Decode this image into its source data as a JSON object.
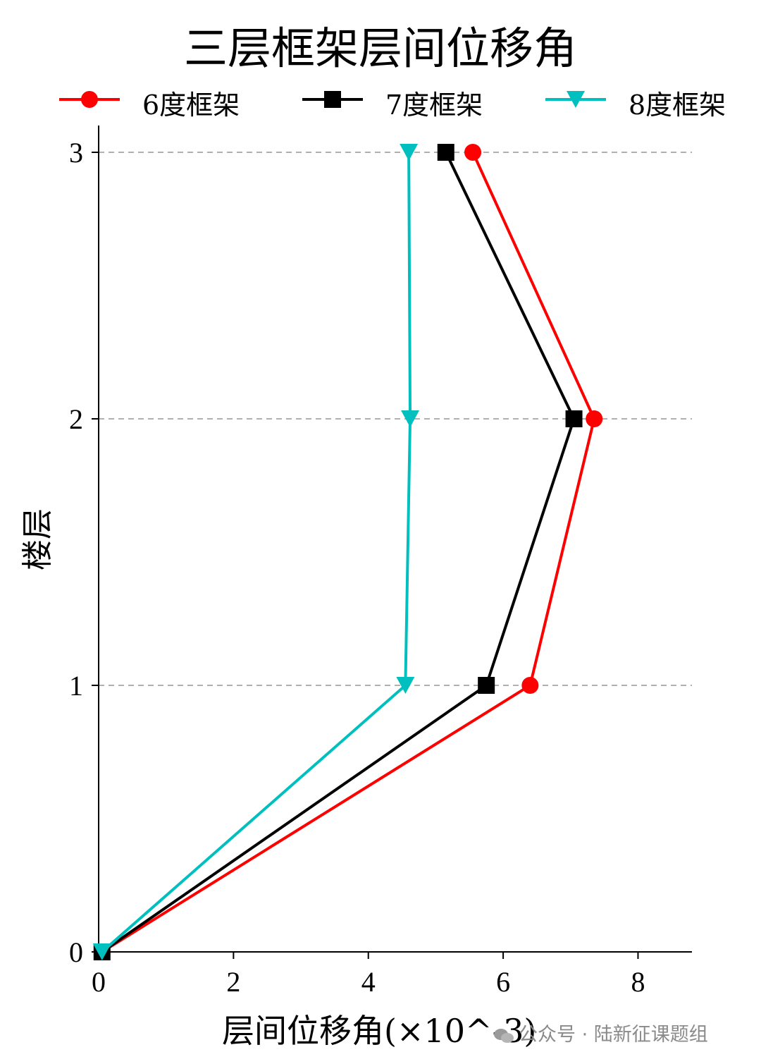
{
  "chart_data": {
    "type": "line",
    "title": "三层框架层间位移角",
    "xlabel": "层间位移角(×10^-3)",
    "ylabel": "楼层",
    "xlim": [
      0,
      8.8
    ],
    "ylim": [
      0,
      3.1
    ],
    "xticks": [
      0,
      2,
      4,
      6,
      8
    ],
    "xtick_labels": [
      "0",
      "2",
      "4",
      "6",
      "8"
    ],
    "yticks": [
      0,
      1,
      2,
      3
    ],
    "ytick_labels": [
      "0",
      "1",
      "2",
      "3"
    ],
    "grid": "horizontal dashed at floors 1-3",
    "legend_position": "top, above plot",
    "series": [
      {
        "name": "6度框架",
        "color": "#ff0000",
        "marker": "circle",
        "x": [
          0.05,
          6.4,
          7.35,
          5.55
        ],
        "y": [
          0,
          1,
          2,
          3
        ]
      },
      {
        "name": "7度框架",
        "color": "#000000",
        "marker": "square",
        "x": [
          0.05,
          5.75,
          7.05,
          5.15
        ],
        "y": [
          0,
          1,
          2,
          3
        ]
      },
      {
        "name": "8度框架",
        "color": "#00bfbf",
        "marker": "triangle-down",
        "x": [
          0.05,
          4.55,
          4.62,
          4.6
        ],
        "y": [
          0,
          1,
          2,
          3
        ]
      }
    ]
  },
  "watermark": {
    "text": "公众号 · 陆新征课题组",
    "icon": "wechat-icon"
  }
}
